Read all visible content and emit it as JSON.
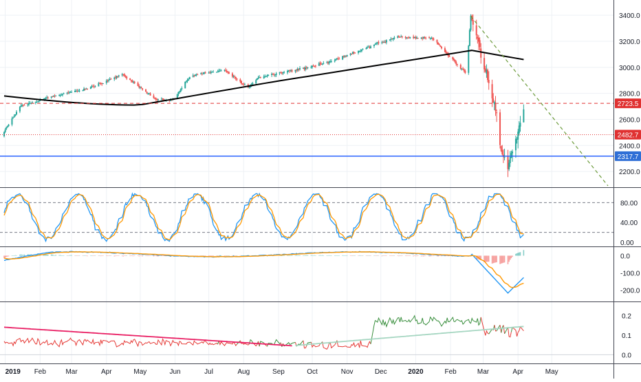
{
  "colors": {
    "up": "#26a69a",
    "down": "#ef5350",
    "ma200": "#000000",
    "red_level": "#e03131",
    "blue_level": "#2962ff",
    "blue_label": "#2f6fd6",
    "trend": "#6b9a3a",
    "stoch_k": "#2196f3",
    "stoch_d": "#ff9800",
    "grid": "#eef1f5",
    "pink": "#e91e63",
    "vol_green": "#388e3c",
    "vol_red": "#e53935",
    "vol_mint": "#a5d6c1"
  },
  "chart_data": [
    {
      "type": "candlestick",
      "y_ticks": [
        "3400.0",
        "3200.0",
        "3000.0",
        "2800.0",
        "2600.0",
        "2400.0",
        "2200.0"
      ],
      "ylim": [
        2100,
        3475
      ],
      "x_ticks": [
        "2019",
        "Feb",
        "Mar",
        "Apr",
        "May",
        "Jun",
        "Jul",
        "Aug",
        "Sep",
        "Oct",
        "Nov",
        "Dec",
        "2020",
        "Feb",
        "Mar",
        "Apr",
        "May"
      ],
      "monthly_close": [
        [
          "2019-01",
          2704
        ],
        [
          "2019-02",
          2784
        ],
        [
          "2019-03",
          2834
        ],
        [
          "2019-04",
          2946
        ],
        [
          "2019-05",
          2752
        ],
        [
          "2019-06",
          2942
        ],
        [
          "2019-07",
          2980
        ],
        [
          "2019-08",
          2926
        ],
        [
          "2019-09",
          2977
        ],
        [
          "2019-10",
          3038
        ],
        [
          "2019-11",
          3141
        ],
        [
          "2019-12",
          3231
        ],
        [
          "2020-01",
          3226
        ],
        [
          "2020-02",
          2954
        ],
        [
          "2020-03",
          2585
        ],
        [
          "2020-04-06",
          2663
        ]
      ],
      "high": 3393,
      "low": 2192,
      "ma200_start": 2780,
      "ma200_end": 3060,
      "levels": [
        {
          "value": 2723.5,
          "label": "2723.5",
          "style": "dashed"
        },
        {
          "value": 2482.7,
          "label": "2482.7",
          "style": "dotted"
        },
        {
          "value": 2317.7,
          "label": "2317.7",
          "style": "solid"
        }
      ]
    },
    {
      "type": "line",
      "indicator": "stochastic",
      "y_ticks": [
        "80.00",
        "40.00",
        "0.00"
      ],
      "ylim": [
        0,
        100
      ],
      "bands": [
        80,
        20
      ]
    },
    {
      "type": "line",
      "indicator": "macd",
      "y_ticks": [
        "0.0",
        "-100.0",
        "-200.0"
      ],
      "ylim": [
        -250,
        30
      ]
    },
    {
      "type": "line",
      "indicator": "volatility",
      "y_ticks": [
        "0.2",
        "0.1",
        "0.0"
      ],
      "ylim": [
        -0.03,
        0.25
      ]
    }
  ]
}
